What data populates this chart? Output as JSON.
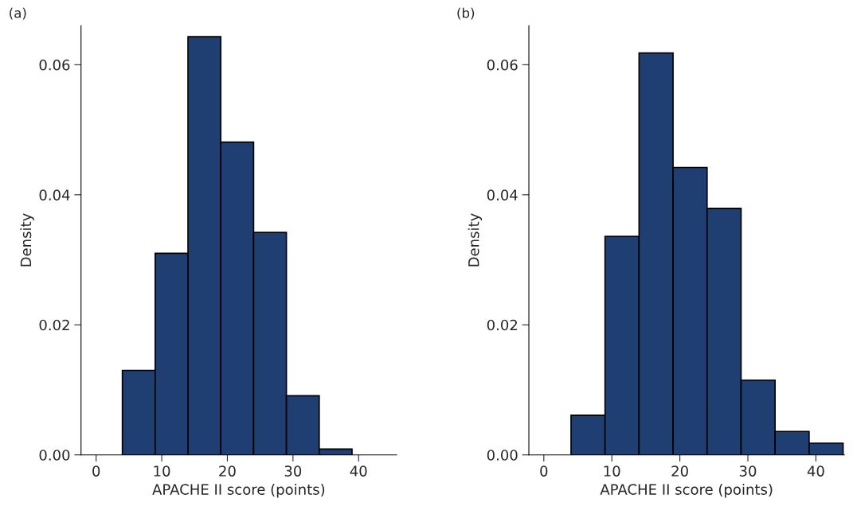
{
  "chart_data": [
    {
      "type": "histogram",
      "title": "(a)",
      "xlabel": "APACHE II score (points)",
      "ylabel": "Density",
      "color": "#1f3f73",
      "bins": [
        4,
        9,
        14,
        19,
        24,
        29,
        34,
        39
      ],
      "values": [
        0.013,
        0.031,
        0.0643,
        0.0481,
        0.0342,
        0.0091,
        0.0009
      ],
      "xlim": [
        -2.3,
        45.8
      ],
      "xticks": [
        0,
        10,
        20,
        30,
        40
      ],
      "ylim": [
        0,
        0.066
      ],
      "yticks": [
        {
          "value": 0,
          "label": "0.00"
        },
        {
          "value": 0.02,
          "label": "0.02"
        },
        {
          "value": 0.04,
          "label": "0.04"
        },
        {
          "value": 0.06,
          "label": "0.06"
        }
      ],
      "grid": false
    },
    {
      "type": "histogram",
      "title": "(b)",
      "xlabel": "APACHE II score (points)",
      "ylabel": "Density",
      "color": "#1f3f73",
      "bins": [
        4,
        9,
        14,
        19,
        24,
        29,
        34,
        39,
        44
      ],
      "values": [
        0.0061,
        0.0336,
        0.0618,
        0.0442,
        0.0379,
        0.0115,
        0.0036,
        0.0018
      ],
      "xlim": [
        -2.2,
        44.2
      ],
      "xticks": [
        0,
        10,
        20,
        30,
        40
      ],
      "ylim": [
        0,
        0.066
      ],
      "yticks": [
        {
          "value": 0,
          "label": "0.00"
        },
        {
          "value": 0.02,
          "label": "0.02"
        },
        {
          "value": 0.04,
          "label": "0.04"
        },
        {
          "value": 0.06,
          "label": "0.06"
        }
      ],
      "grid": false
    }
  ]
}
